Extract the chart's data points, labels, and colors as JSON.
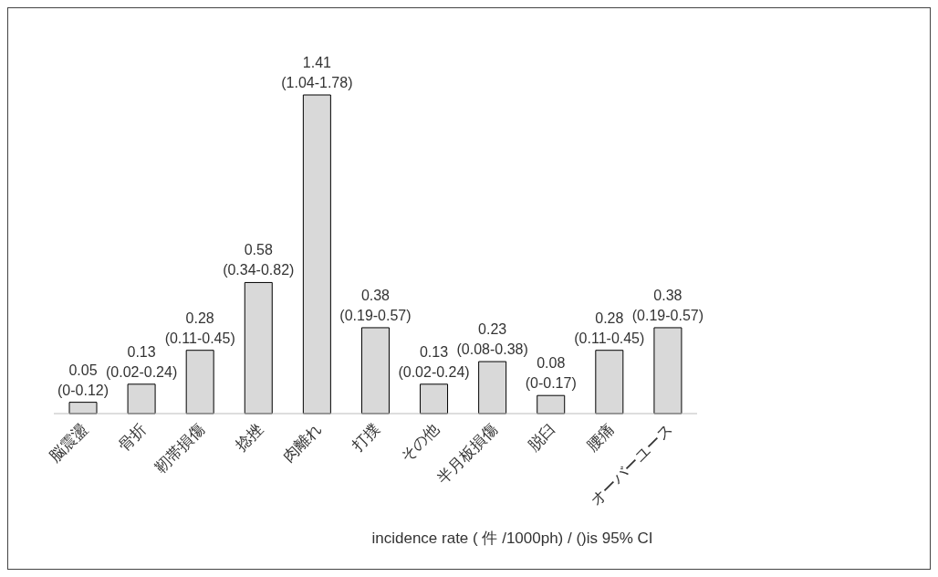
{
  "chart_data": {
    "type": "bar",
    "xlabel": "incidence rate ( 件 /1000ph) / ()is 95% CI",
    "categories": [
      "脳震盪",
      "骨折",
      "靭帯損傷",
      "捻挫",
      "肉離れ",
      "打撲",
      "その他",
      "半月板損傷",
      "脱臼",
      "腰痛",
      "オーバーユース"
    ],
    "values": [
      0.05,
      0.13,
      0.28,
      0.58,
      1.41,
      0.38,
      0.13,
      0.23,
      0.08,
      0.28,
      0.38
    ],
    "value_labels": [
      "0.05 (0-0.12)",
      "0.13 (0.02-0.24)",
      "0.28 (0.11-0.45)",
      "0.58 (0.34-0.82)",
      "1.41 (1.04-1.78)",
      "0.38 (0.19-0.57)",
      "0.13 (0.02-0.24)",
      "0.23 (0.08-0.38)",
      "0.08 (0-0.17)",
      "0.28 (0.11-0.45)",
      "0.38 (0.19-0.57)"
    ],
    "color": "#d9d9d9"
  }
}
